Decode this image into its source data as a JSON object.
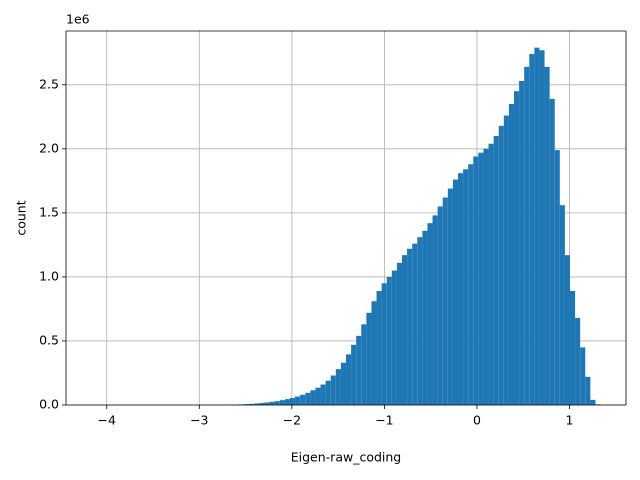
{
  "chart_data": {
    "type": "histogram",
    "xlabel": "Eigen-raw_coding",
    "ylabel": "count",
    "y_offset_label": "1e6",
    "color": "#1f77b4",
    "grid": true,
    "xlim": [
      -4.44,
      1.61
    ],
    "ylim": [
      0,
      2920000
    ],
    "xticks": [
      -4,
      -3,
      -2,
      -1,
      0,
      1
    ],
    "yticks": [
      {
        "value": 0,
        "label": "0.0"
      },
      {
        "value": 500000,
        "label": "0.5"
      },
      {
        "value": 1000000,
        "label": "1.0"
      },
      {
        "value": 1500000,
        "label": "1.5"
      },
      {
        "value": 2000000,
        "label": "2.0"
      },
      {
        "value": 2500000,
        "label": "2.5"
      }
    ],
    "bins": [
      -4.165,
      -4.11,
      -4.055,
      -4.0,
      -3.945,
      -3.89,
      -3.835,
      -3.78,
      -3.725,
      -3.67,
      -3.615,
      -3.56,
      -3.505,
      -3.45,
      -3.395,
      -3.34,
      -3.285,
      -3.23,
      -3.175,
      -3.12,
      -3.065,
      -3.01,
      -2.955,
      -2.9,
      -2.845,
      -2.79,
      -2.735,
      -2.68,
      -2.625,
      -2.57,
      -2.515,
      -2.46,
      -2.405,
      -2.35,
      -2.295,
      -2.24,
      -2.185,
      -2.13,
      -2.075,
      -2.02,
      -1.965,
      -1.91,
      -1.855,
      -1.8,
      -1.745,
      -1.69,
      -1.635,
      -1.58,
      -1.525,
      -1.47,
      -1.415,
      -1.36,
      -1.305,
      -1.25,
      -1.195,
      -1.14,
      -1.085,
      -1.03,
      -0.975,
      -0.92,
      -0.865,
      -0.81,
      -0.755,
      -0.7,
      -0.645,
      -0.59,
      -0.535,
      -0.48,
      -0.425,
      -0.37,
      -0.315,
      -0.26,
      -0.205,
      -0.15,
      -0.095,
      -0.04,
      0.015,
      0.07,
      0.125,
      0.18,
      0.235,
      0.29,
      0.345,
      0.4,
      0.455,
      0.51,
      0.565,
      0.62,
      0.675,
      0.73,
      0.785,
      0.84,
      0.895,
      0.95,
      1.005,
      1.06,
      1.115,
      1.17,
      1.225,
      1.28,
      1.335
    ],
    "counts": [
      1,
      0,
      0,
      1,
      0,
      2,
      1,
      3,
      5,
      8,
      12,
      20,
      30,
      45,
      65,
      90,
      120,
      160,
      210,
      270,
      340,
      420,
      510,
      610,
      720,
      850,
      1000,
      2000,
      3000,
      5000,
      7000,
      9000,
      12000,
      15000,
      20000,
      25000,
      30000,
      38000,
      46000,
      55000,
      66000,
      80000,
      95000,
      115000,
      135000,
      160000,
      190000,
      230000,
      280000,
      330000,
      395000,
      470000,
      540000,
      630000,
      720000,
      810000,
      890000,
      950000,
      1000000,
      1050000,
      1110000,
      1170000,
      1220000,
      1260000,
      1310000,
      1360000,
      1420000,
      1480000,
      1550000,
      1620000,
      1690000,
      1760000,
      1810000,
      1840000,
      1880000,
      1940000,
      1970000,
      2000000,
      2040000,
      2100000,
      2180000,
      2260000,
      2350000,
      2450000,
      2530000,
      2640000,
      2740000,
      2790000,
      2770000,
      2640000,
      2390000,
      1990000,
      1560000,
      1170000,
      890000,
      680000,
      450000,
      220000,
      40000,
      5000
    ]
  }
}
